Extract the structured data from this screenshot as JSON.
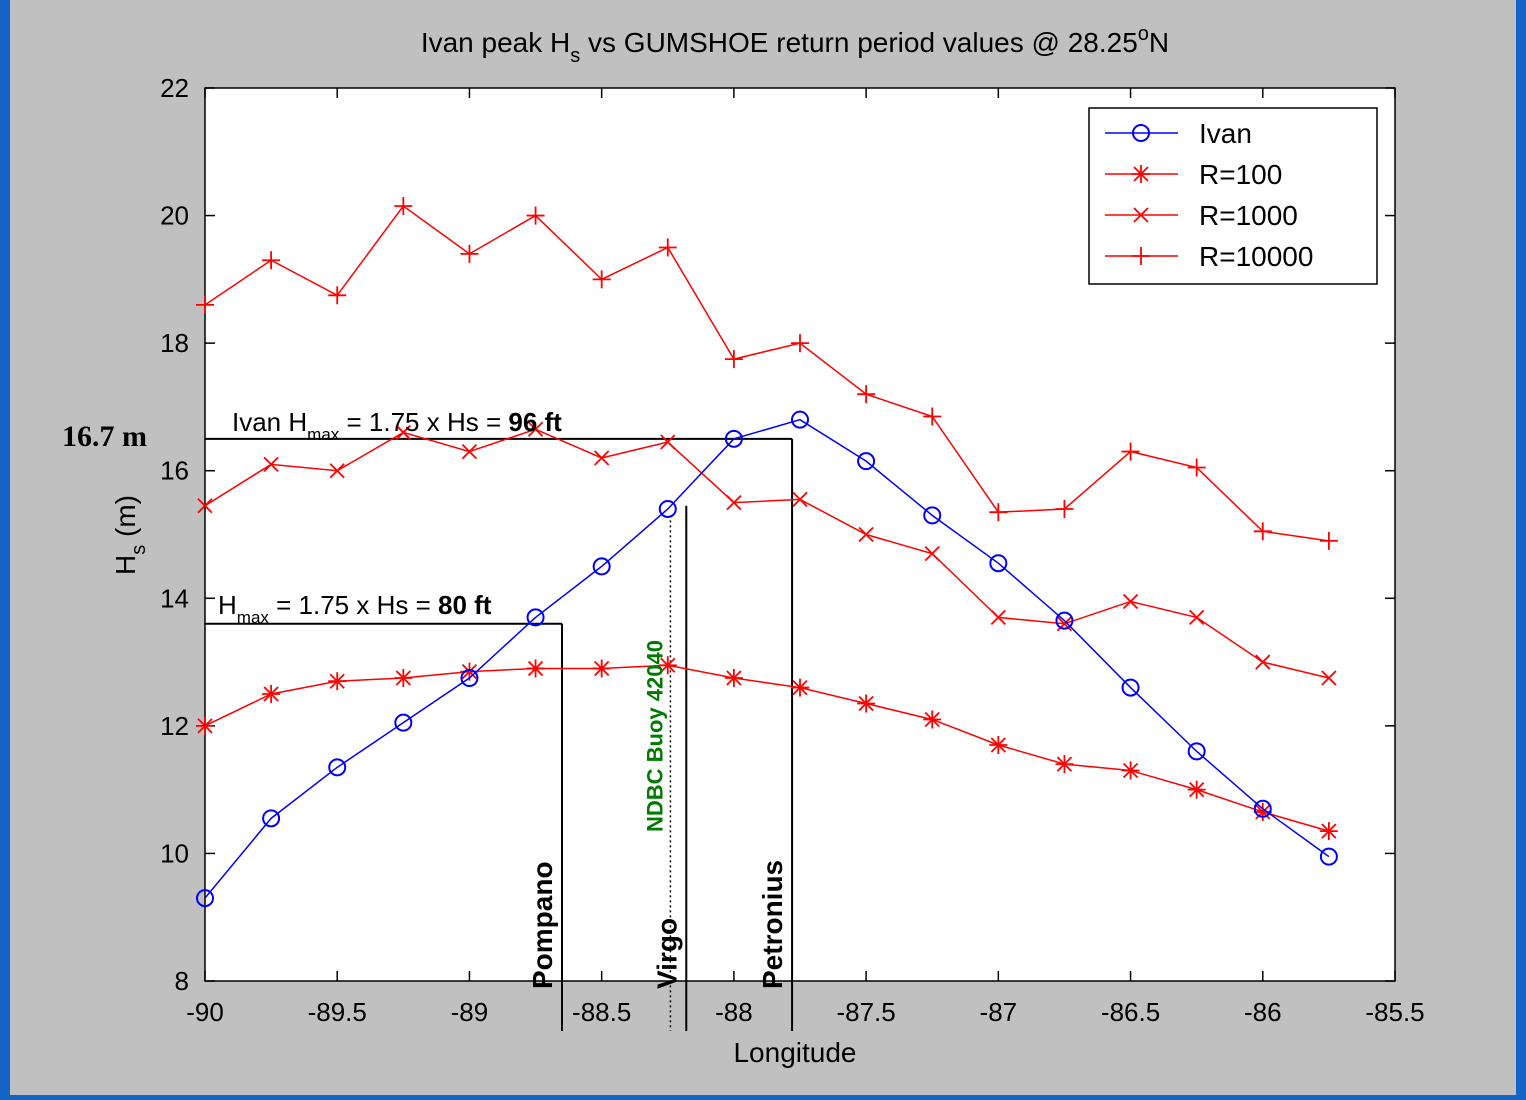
{
  "colors": {
    "frame": "#1565c8",
    "figure_bg": "#c0c0c0",
    "axes_bg": "#ffffff",
    "ivan": "#0000ff",
    "returns": "#ff0000",
    "buoy_label": "#007a00",
    "annotation": "#000000"
  },
  "chart_data": {
    "type": "line",
    "title": {
      "prefix": "Ivan peak H",
      "sub": "s",
      "mid": " vs GUMSHOE return period values @ 28.25",
      "sup": "o",
      "suffix": "N"
    },
    "xlabel": "Longitude",
    "ylabel": {
      "main": "H",
      "sub": "s",
      "rest": " (m)"
    },
    "xlim": [
      -90,
      -85.5
    ],
    "ylim": [
      8,
      22
    ],
    "xticks": [
      -90,
      -89.5,
      -89,
      -88.5,
      -88,
      -87.5,
      -87,
      -86.5,
      -86,
      -85.5
    ],
    "xtick_labels": [
      "-90",
      "-89.5",
      "-89",
      "-88.5",
      "-88",
      "-87.5",
      "-87",
      "-86.5",
      "-86",
      "-85.5"
    ],
    "yticks": [
      8,
      10,
      12,
      14,
      16,
      18,
      20,
      22
    ],
    "ytick_labels": [
      "8",
      "10",
      "12",
      "14",
      "16",
      "18",
      "20",
      "22"
    ],
    "grid": false,
    "legend_position": "top-right",
    "x": [
      -90,
      -89.75,
      -89.5,
      -89.25,
      -89,
      -88.75,
      -88.5,
      -88.25,
      -88,
      -87.75,
      -87.5,
      -87.25,
      -87,
      -86.75,
      -86.5,
      -86.25,
      -86,
      -85.75
    ],
    "series": [
      {
        "name": "Ivan",
        "marker": "circle",
        "color_key": "ivan",
        "values": [
          9.3,
          10.55,
          11.35,
          12.05,
          12.75,
          13.7,
          14.5,
          15.4,
          16.5,
          16.8,
          16.15,
          15.3,
          14.55,
          13.65,
          12.6,
          11.6,
          10.7,
          9.95
        ]
      },
      {
        "name": "R=100",
        "marker": "star",
        "color_key": "returns",
        "values": [
          12.0,
          12.5,
          12.7,
          12.75,
          12.85,
          12.9,
          12.9,
          12.95,
          12.75,
          12.6,
          12.35,
          12.1,
          11.7,
          11.4,
          11.3,
          11.0,
          10.65,
          10.35
        ]
      },
      {
        "name": "R=1000",
        "marker": "x",
        "color_key": "returns",
        "values": [
          15.45,
          16.1,
          16.0,
          16.6,
          16.3,
          16.65,
          16.2,
          16.45,
          15.5,
          15.55,
          15.0,
          14.7,
          13.7,
          13.6,
          13.95,
          13.7,
          13.0,
          12.75
        ]
      },
      {
        "name": "R=10000",
        "marker": "plus",
        "color_key": "returns",
        "values": [
          18.6,
          19.3,
          18.75,
          20.15,
          19.4,
          20.0,
          19.0,
          19.5,
          17.75,
          18.0,
          17.2,
          16.85,
          15.35,
          15.4,
          16.3,
          16.05,
          15.05,
          14.9
        ]
      }
    ],
    "annotations": {
      "ivan_hmax": {
        "prefix": "Ivan H",
        "sub": "max",
        "mid": " = 1.75 x Hs = ",
        "bold": "96 ft",
        "y": 16.5,
        "x_start": -90,
        "x_end": -87.78
      },
      "hmax_80": {
        "prefix": "H",
        "sub": "max",
        "mid": " = 1.75 x Hs = ",
        "bold": "80 ft",
        "y": 13.6,
        "x_start": -90,
        "x_end": -88.65
      },
      "peak_value_label": "16.7 m",
      "platforms": [
        {
          "name": "Pompano",
          "x": -88.65,
          "y_top": 13.6,
          "style": "solid"
        },
        {
          "name": "Virgo",
          "x": -88.18,
          "y_top": 15.45,
          "style": "solid"
        },
        {
          "name": "Petronius",
          "x": -87.78,
          "y_top": 16.5,
          "style": "solid"
        }
      ],
      "buoy": {
        "name": "NDBC Buoy 42040",
        "x": -88.24,
        "y_top": 15.3,
        "style": "dotted"
      }
    }
  }
}
